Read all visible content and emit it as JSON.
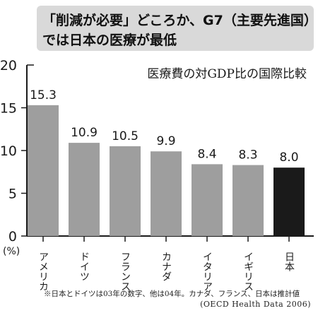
{
  "headline": {
    "line1": "「削減が必要」どころか、G7（主要先進国）",
    "line2": "では日本の医療が最低"
  },
  "footnote": "※日本とドイツは03年の数字、他は04年。カナダ、フランス、日本は推計値",
  "source": "(OECD Health Data 2006)",
  "colors": {
    "bar": "#9e9e9e",
    "highlight": "#1a1a1a",
    "text": "#1a1a1a"
  },
  "chart_data": {
    "type": "bar",
    "title": "医療費の対GDP比の国際比較",
    "unit_label": "(%)",
    "categories": [
      "アメリカ",
      "ドイツ",
      "フランス",
      "カナダ",
      "イタリア",
      "イギリス",
      "日本"
    ],
    "values": [
      15.3,
      10.9,
      10.5,
      9.9,
      8.4,
      8.3,
      8.0
    ],
    "value_labels": [
      "15.3",
      "10.9",
      "10.5",
      "9.9",
      "8.4",
      "8.3",
      "8.0"
    ],
    "highlight": "日本",
    "ylim": [
      0,
      20
    ],
    "yticks": [
      0,
      5,
      10,
      15,
      20
    ],
    "grid": false,
    "legend": "none"
  }
}
